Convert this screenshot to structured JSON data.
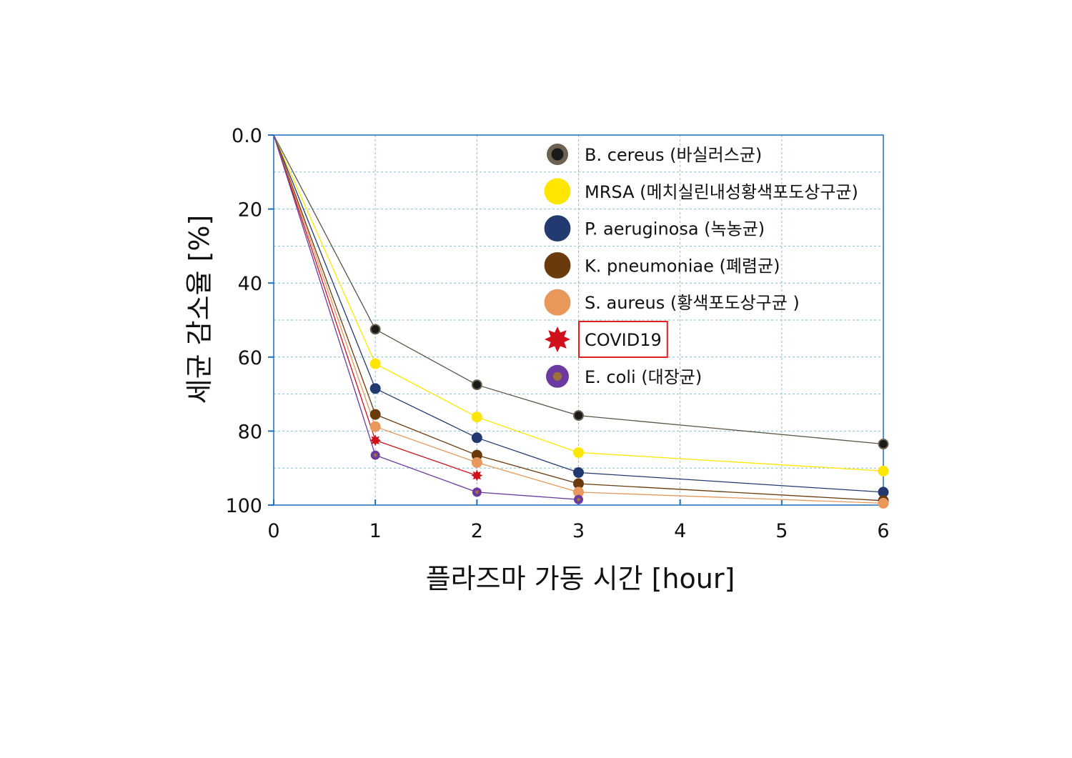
{
  "chart_data": {
    "type": "line",
    "xlabel": "플라즈마 가동 시간 [hour]",
    "ylabel": "세균 감소율 [%]",
    "x_ticks": [
      "0",
      "1",
      "2",
      "3",
      "4",
      "5",
      "6"
    ],
    "y_ticks": [
      "0.0",
      "20",
      "40",
      "60",
      "80",
      "100"
    ],
    "xlim": [
      0,
      6
    ],
    "ylim": [
      0,
      100
    ],
    "y_inverted": true,
    "grid": true,
    "legend_position": "top-right",
    "series": [
      {
        "name": "B. cereus (바실러스균)",
        "color": "#1a1a1a",
        "edge_color": "#6b6350",
        "line_color": "#5b5445",
        "marker": "circle",
        "points": [
          [
            0,
            0
          ],
          [
            1,
            52.5
          ],
          [
            2,
            67.5
          ],
          [
            3,
            75.8
          ],
          [
            6,
            83.5
          ]
        ]
      },
      {
        "name": "MRSA (메치실린내성황색포도상구균)",
        "color": "#ffe600",
        "edge_color": "#ffe600",
        "line_color": "#ffe600",
        "marker": "circle",
        "points": [
          [
            0,
            0
          ],
          [
            1,
            61.8
          ],
          [
            2,
            76.2
          ],
          [
            3,
            85.8
          ],
          [
            6,
            90.8
          ]
        ]
      },
      {
        "name": "P. aeruginosa (녹농균)",
        "color": "#223a70",
        "edge_color": "#223a70",
        "line_color": "#223a70",
        "marker": "circle",
        "points": [
          [
            0,
            0
          ],
          [
            1,
            68.5
          ],
          [
            2,
            81.8
          ],
          [
            3,
            91.2
          ],
          [
            6,
            96.5
          ]
        ]
      },
      {
        "name": "K. pneumoniae (폐렴균)",
        "color": "#6b3a0c",
        "edge_color": "#6b3a0c",
        "line_color": "#6b3a0c",
        "marker": "circle",
        "points": [
          [
            0,
            0
          ],
          [
            1,
            75.5
          ],
          [
            2,
            86.5
          ],
          [
            3,
            94.2
          ],
          [
            6,
            98.8
          ]
        ]
      },
      {
        "name": "S. aureus (황색포도상구균 )",
        "color": "#e8985a",
        "edge_color": "#e8985a",
        "line_color": "#e8985a",
        "marker": "circle",
        "points": [
          [
            0,
            0
          ],
          [
            1,
            78.8
          ],
          [
            2,
            88.5
          ],
          [
            3,
            96.5
          ],
          [
            6,
            99.5
          ]
        ]
      },
      {
        "name": "COVID19",
        "color": "#d0101a",
        "edge_color": "#d0101a",
        "line_color": "#d0101a",
        "marker": "star",
        "points": [
          [
            0,
            0
          ],
          [
            1,
            82.5
          ],
          [
            2,
            92.0
          ]
        ]
      },
      {
        "name": "E. coli  (대장균)",
        "color": "#6b3aa0",
        "edge_color": "#6b3aa0",
        "line_color": "#6b3aa0",
        "marker": "circle-dot",
        "dot_color": "#a0703a",
        "points": [
          [
            0,
            0
          ],
          [
            1,
            86.5
          ],
          [
            2,
            96.5
          ],
          [
            3,
            98.5
          ]
        ]
      }
    ],
    "highlighted_legend_entry": "COVID19",
    "highlight_color": "#e02020",
    "grid_color": "#6ec6e6",
    "axis_color": "#1a6fc0"
  }
}
